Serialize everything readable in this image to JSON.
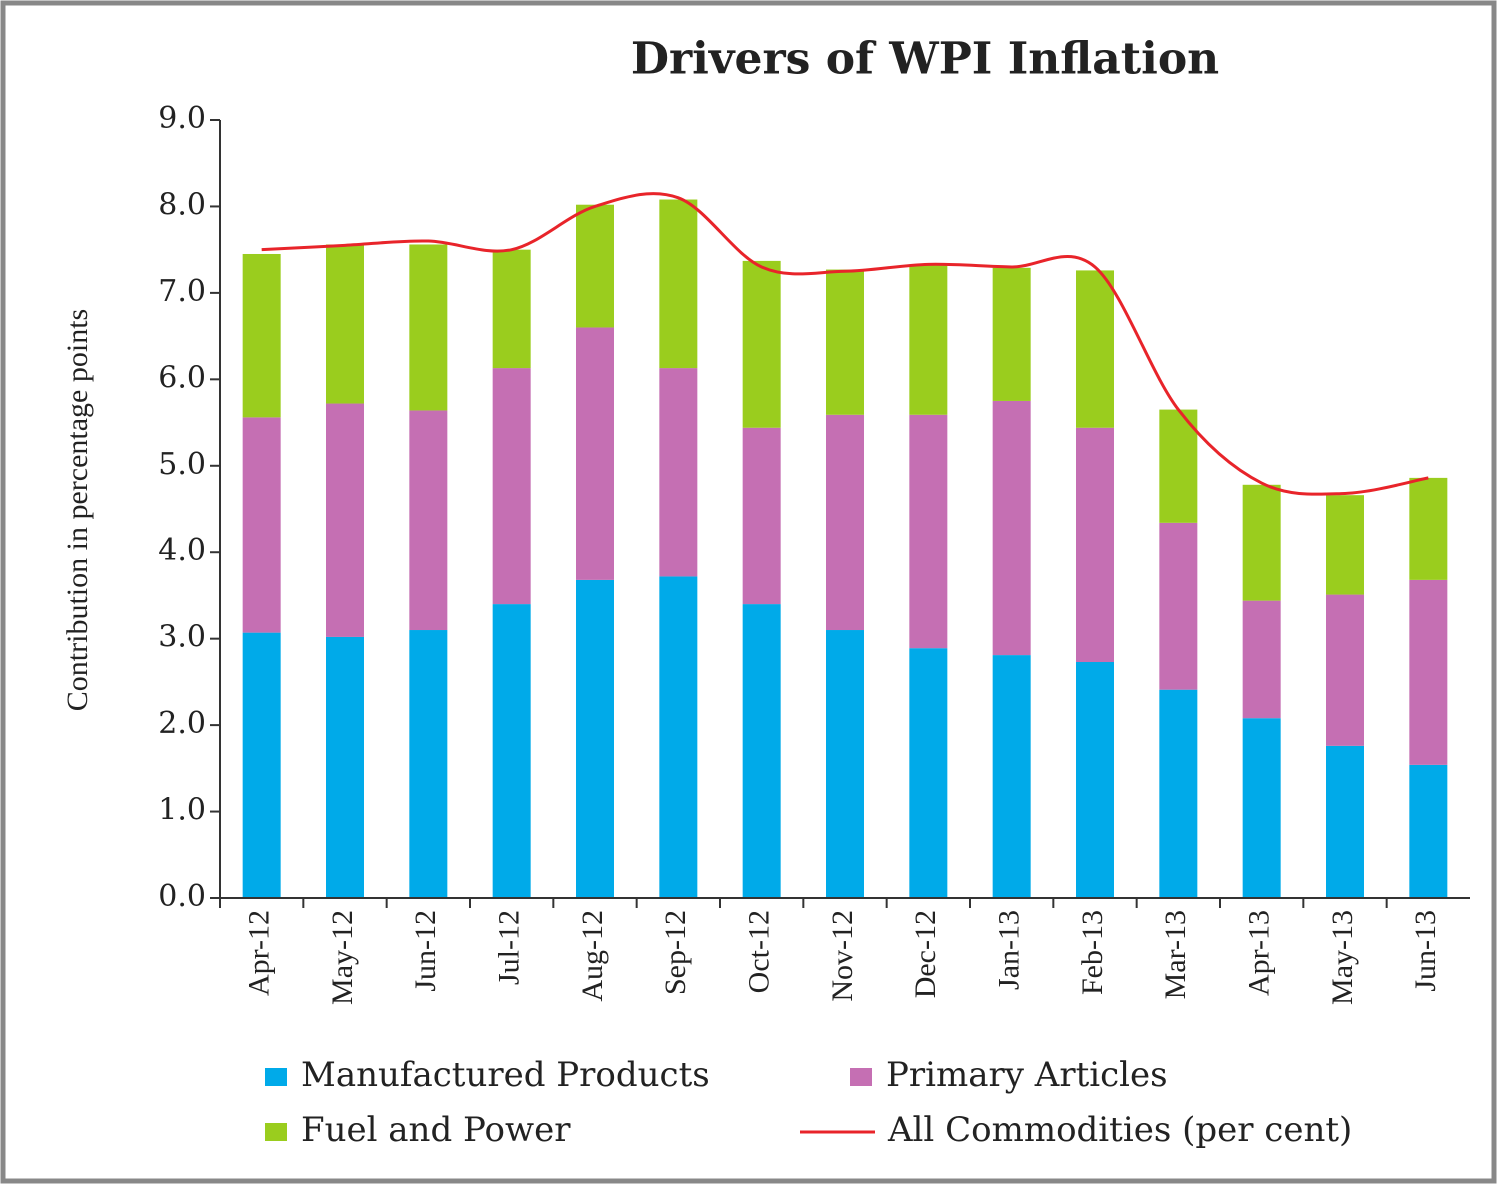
{
  "chart_data": {
    "type": "stacked-bar-line",
    "title": "Drivers of WPI Inflation",
    "ylabel": "Contribution in percentage points",
    "categories": [
      "Apr-12",
      "May-12",
      "Jun-12",
      "Jul-12",
      "Aug-12",
      "Sep-12",
      "Oct-12",
      "Nov-12",
      "Dec-12",
      "Jan-13",
      "Feb-13",
      "Mar-13",
      "Apr-13",
      "May-13",
      "Jun-13"
    ],
    "series": [
      {
        "name": "Manufactured Products",
        "color": "#00aae9",
        "kind": "bar",
        "values": [
          3.07,
          3.02,
          3.1,
          3.4,
          3.68,
          3.72,
          3.4,
          3.1,
          2.89,
          2.81,
          2.73,
          2.41,
          2.08,
          1.76,
          1.54
        ]
      },
      {
        "name": "Primary Articles",
        "color": "#c56fb3",
        "kind": "bar",
        "values": [
          2.49,
          2.7,
          2.54,
          2.73,
          2.92,
          2.41,
          2.04,
          2.49,
          2.7,
          2.94,
          2.71,
          1.93,
          1.36,
          1.75,
          2.14
        ]
      },
      {
        "name": "Fuel and Power",
        "color": "#9acd1e",
        "kind": "bar",
        "values": [
          1.89,
          1.84,
          1.92,
          1.37,
          1.42,
          1.95,
          1.93,
          1.68,
          1.74,
          1.54,
          1.82,
          1.31,
          1.34,
          1.15,
          1.18
        ]
      },
      {
        "name": "All Commodities (per cent)",
        "color": "#e8242a",
        "kind": "line",
        "values": [
          7.5,
          7.55,
          7.6,
          7.5,
          8.0,
          8.1,
          7.3,
          7.25,
          7.33,
          7.3,
          7.3,
          5.65,
          4.8,
          4.68,
          4.86
        ]
      }
    ],
    "ylim": [
      0,
      9
    ],
    "yticks": [
      {
        "value": 0,
        "label": "0.0"
      },
      {
        "value": 1,
        "label": "1.0"
      },
      {
        "value": 2,
        "label": "2.0"
      },
      {
        "value": 3,
        "label": "3.0"
      },
      {
        "value": 4,
        "label": "4.0"
      },
      {
        "value": 5,
        "label": "5.0"
      },
      {
        "value": 6,
        "label": "6.0"
      },
      {
        "value": 7,
        "label": "7.0"
      },
      {
        "value": 8,
        "label": "8.0"
      },
      {
        "value": 9,
        "label": "9.0"
      }
    ]
  }
}
